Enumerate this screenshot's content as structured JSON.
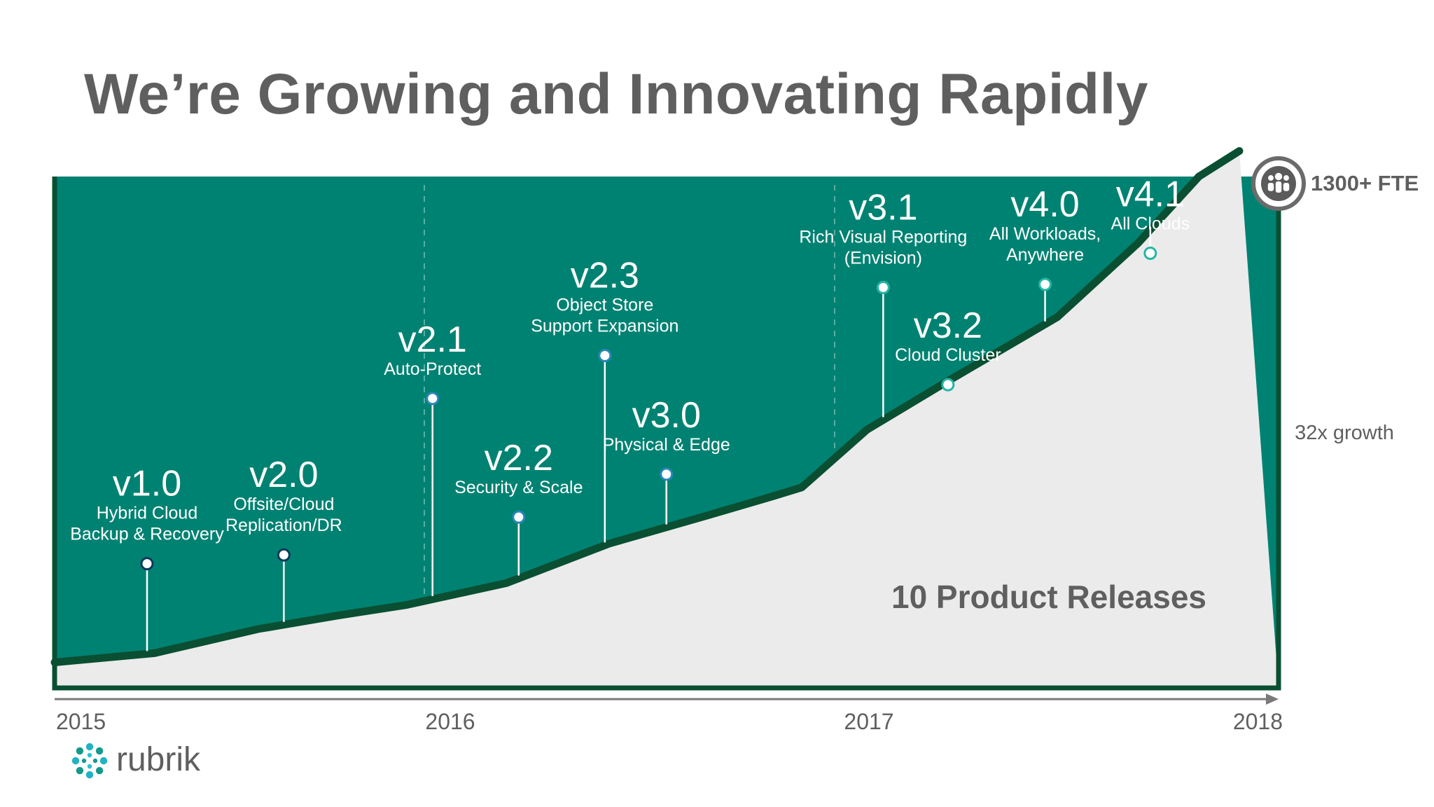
{
  "slide": {
    "title": "We’re Growing and Innovating Rapidly",
    "brand": "rubrik"
  },
  "colors": {
    "accent": "#008272",
    "line": "#0a4f32",
    "area": "#ebebec",
    "text": "#5f5f5f"
  },
  "chart_data": {
    "type": "area",
    "x_tick_labels": [
      "2015",
      "2016",
      "2017",
      "2018"
    ],
    "headcount_label": "1300+ FTE",
    "growth_label": "32x growth",
    "releases_label": "10 Product Releases",
    "growth_curve": [
      [
        2015.0,
        0.05
      ],
      [
        2015.27,
        0.068
      ],
      [
        2015.55,
        0.115
      ],
      [
        2015.77,
        0.142
      ],
      [
        2015.95,
        0.162
      ],
      [
        2016.2,
        0.205
      ],
      [
        2016.45,
        0.282
      ],
      [
        2016.68,
        0.335
      ],
      [
        2016.85,
        0.375
      ],
      [
        2016.92,
        0.392
      ],
      [
        2017.08,
        0.505
      ],
      [
        2017.28,
        0.6
      ],
      [
        2017.55,
        0.725
      ],
      [
        2017.75,
        0.87
      ],
      [
        2017.9,
        1.0
      ],
      [
        2018.0,
        1.05
      ]
    ],
    "releases": [
      {
        "version": "v1.0",
        "lines": [
          "Hybrid Cloud",
          "Backup & Recovery"
        ],
        "t": 2015.25,
        "top": 0.243,
        "dot": "dark"
      },
      {
        "version": "v2.0",
        "lines": [
          "Offsite/Cloud",
          "Replication/DR"
        ],
        "t": 2015.62,
        "top": 0.26,
        "dot": "dark"
      },
      {
        "version": "v2.1",
        "lines": [
          "Auto-Protect"
        ],
        "t": 2016.02,
        "top": 0.566,
        "dot": "blue"
      },
      {
        "version": "v2.2",
        "lines": [
          "Security & Scale"
        ],
        "t": 2016.23,
        "top": 0.334,
        "dot": "blue"
      },
      {
        "version": "v2.3",
        "lines": [
          "Object Store",
          "Support Expansion"
        ],
        "t": 2016.44,
        "top": 0.65,
        "dot": "blue"
      },
      {
        "version": "v3.0",
        "lines": [
          "Physical & Edge"
        ],
        "t": 2016.59,
        "top": 0.418,
        "dot": "blue"
      },
      {
        "version": "v3.1",
        "lines": [
          "Rich Visual Reporting",
          "(Envision)"
        ],
        "t": 2017.12,
        "top": 0.783,
        "dot": "teal"
      },
      {
        "version": "v3.2",
        "lines": [
          "Cloud Cluster"
        ],
        "t": 2017.28,
        "top": 0.593,
        "dot": "teal"
      },
      {
        "version": "v4.0",
        "lines": [
          "All Workloads,",
          "Anywhere"
        ],
        "t": 2017.52,
        "top": 0.789,
        "dot": "teal"
      },
      {
        "version": "v4.1",
        "lines": [
          "All Clouds"
        ],
        "t": 2017.78,
        "top": 0.85,
        "dot": "teal"
      }
    ]
  }
}
